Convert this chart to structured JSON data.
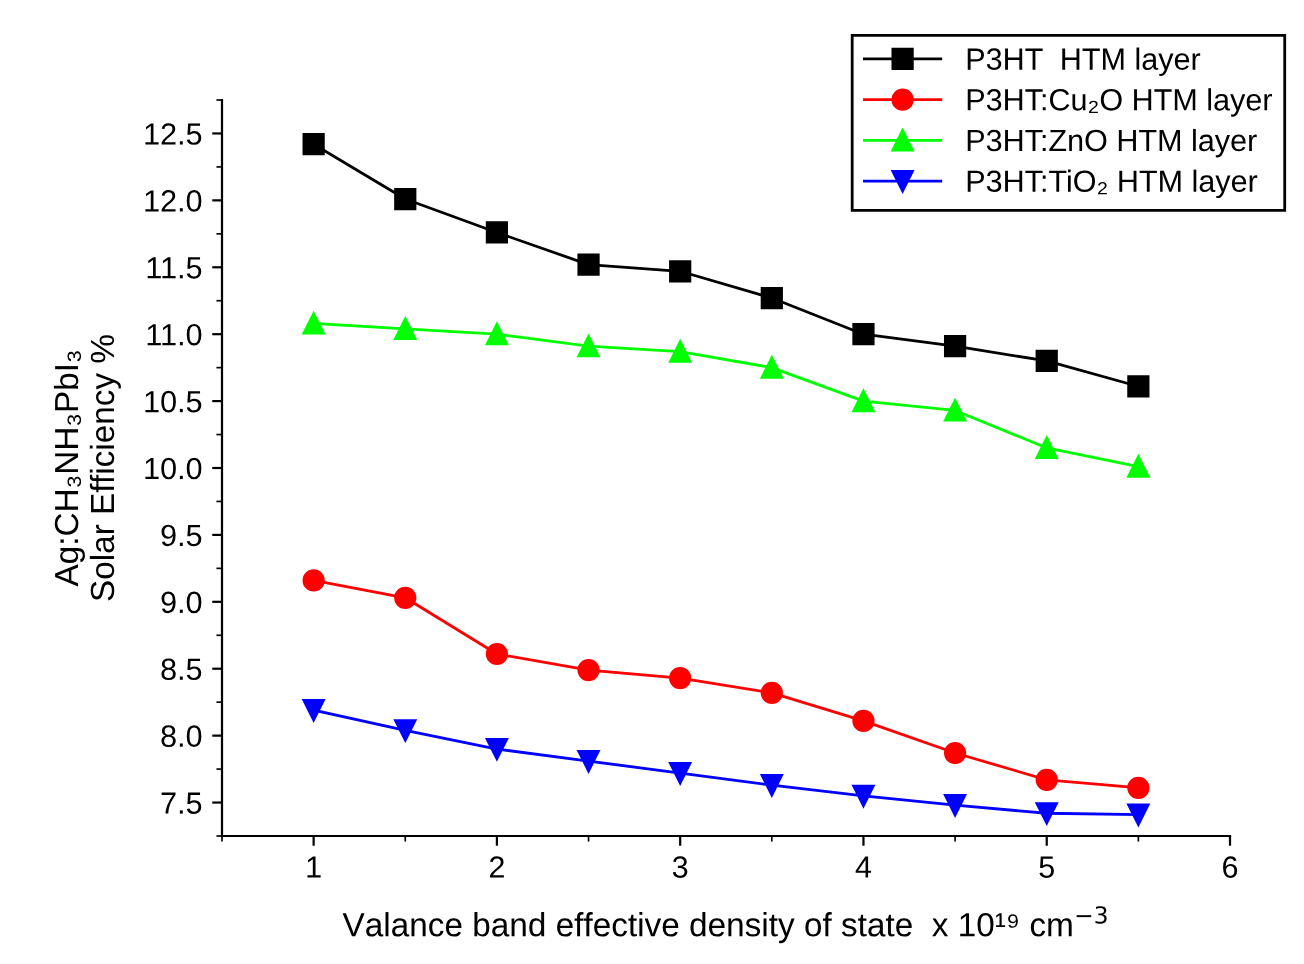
{
  "chart_data": {
    "type": "line",
    "xlabel": "Valance band effective density of state  x 10¹⁹ cm$^{−3}$",
    "ylabel": "Ag:CH₃NH₃PbI₃\nSolar Efficiency %",
    "x": [
      1,
      1.5,
      2,
      2.5,
      3,
      3.5,
      4,
      4.5,
      5,
      5.5
    ],
    "series": [
      {
        "name": "P3HT  HTM layer",
        "color": "#000000",
        "marker": "square",
        "values": [
          12.42,
          12.01,
          11.76,
          11.52,
          11.47,
          11.27,
          11.0,
          10.91,
          10.8,
          10.61
        ]
      },
      {
        "name": "P3HT:Cu₂O HTM layer",
        "color": "#ff0000",
        "marker": "circle",
        "values": [
          9.16,
          9.03,
          8.61,
          8.49,
          8.43,
          8.32,
          8.11,
          7.87,
          7.67,
          7.61
        ]
      },
      {
        "name": "P3HT:ZnO HTM layer",
        "color": "#00ff00",
        "marker": "triangle",
        "values": [
          11.08,
          11.04,
          11.0,
          10.91,
          10.87,
          10.75,
          10.5,
          10.43,
          10.15,
          10.01
        ]
      },
      {
        "name": "P3HT:TiO₂ HTM layer",
        "color": "#0000ff",
        "marker": "triangle_down",
        "values": [
          8.19,
          8.04,
          7.9,
          7.81,
          7.72,
          7.63,
          7.55,
          7.48,
          7.42,
          7.41
        ]
      }
    ],
    "xlim": [
      0.5,
      6
    ],
    "xticks": [
      1,
      2,
      3,
      4,
      5,
      6
    ],
    "ylim": [
      7.25,
      12.75
    ],
    "yticks": [
      7.5,
      {
        "value": 8,
        "label": "8.0"
      },
      8.5,
      {
        "value": 9,
        "label": "9.0"
      },
      9.5,
      {
        "value": 10,
        "label": "10.0"
      },
      10.5,
      {
        "value": 11,
        "label": "11.0"
      },
      11.5,
      {
        "value": 12,
        "label": "12.0"
      },
      12.5
    ],
    "grid": false,
    "legend": "top right",
    "line_style": "solid"
  }
}
